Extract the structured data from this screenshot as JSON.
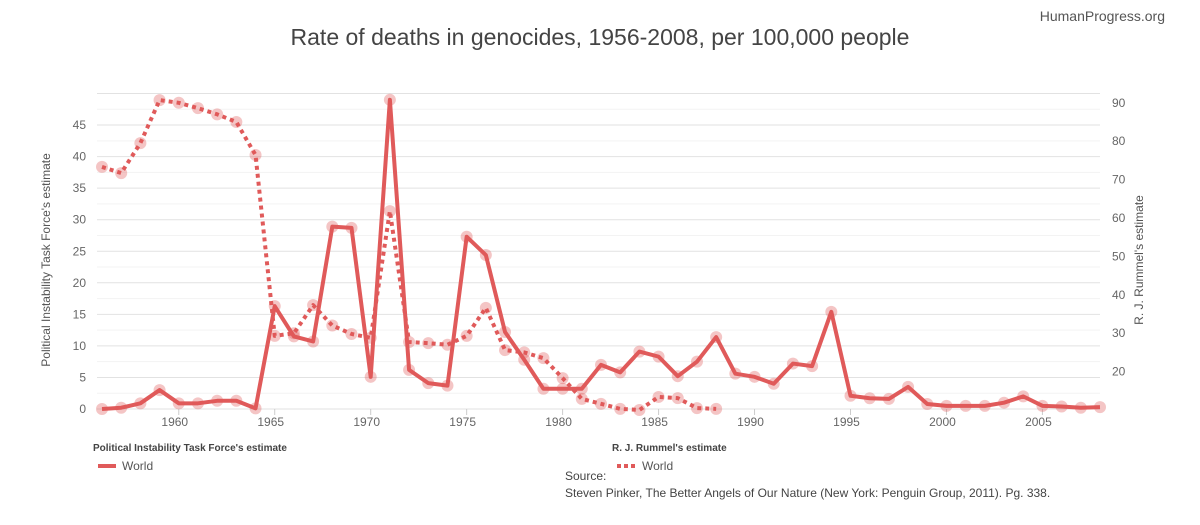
{
  "brand": "HumanProgress.org",
  "chart_data": {
    "type": "line",
    "title": "Rate of deaths in genocides, 1956-2008, per 100,000 people",
    "xlabel": "",
    "ylabel_left": "Political Instability Task Force's estimate",
    "ylabel_right": "R. J. Rummel's estimate",
    "x_ticks": [
      1960,
      1965,
      1970,
      1975,
      1980,
      1985,
      1990,
      1995,
      2000,
      2005
    ],
    "xlim": [
      1956,
      2008
    ],
    "y_left_ticks": [
      0,
      5,
      10,
      15,
      20,
      25,
      30,
      35,
      40,
      45
    ],
    "y_left_lim": [
      0,
      50
    ],
    "y_right_ticks": [
      20,
      30,
      40,
      50,
      60,
      70,
      80,
      90
    ],
    "y_right_lim": [
      10,
      94
    ],
    "grid": true,
    "legend_placement": "bottom",
    "series": [
      {
        "name": "World",
        "group": "Political Instability Task Force's estimate",
        "axis": "left",
        "style": "solid",
        "x": [
          1956,
          1957,
          1958,
          1959,
          1960,
          1961,
          1962,
          1963,
          1964,
          1965,
          1966,
          1967,
          1968,
          1969,
          1970,
          1971,
          1972,
          1973,
          1974,
          1975,
          1976,
          1977,
          1978,
          1979,
          1980,
          1981,
          1982,
          1983,
          1984,
          1985,
          1986,
          1987,
          1988,
          1989,
          1990,
          1991,
          1992,
          1993,
          1994,
          1995,
          1996,
          1997,
          1998,
          1999,
          2000,
          2001,
          2002,
          2003,
          2004,
          2005,
          2006,
          2007,
          2008
        ],
        "values": [
          0,
          0.2,
          0.9,
          3,
          0.9,
          0.9,
          1.3,
          1.3,
          0.1,
          16.3,
          11.5,
          10.7,
          28.9,
          28.7,
          5.1,
          49,
          6.2,
          4.1,
          3.7,
          27.3,
          24.4,
          12.2,
          7.8,
          3.2,
          3.2,
          3.2,
          7,
          5.8,
          9.1,
          8.3,
          5.2,
          7.5,
          11.4,
          5.6,
          5.1,
          4,
          7.2,
          6.8,
          15.4,
          2.1,
          1.7,
          1.6,
          3.5,
          0.8,
          0.5,
          0.5,
          0.5,
          1,
          2,
          0.5,
          0.4,
          0.2,
          0.3
        ]
      },
      {
        "name": "World",
        "group": "R. J. Rummel's estimate",
        "axis": "right",
        "style": "dotted",
        "x": [
          1956,
          1957,
          1958,
          1959,
          1960,
          1961,
          1962,
          1963,
          1964,
          1965,
          1966,
          1967,
          1968,
          1969,
          1970,
          1971,
          1972,
          1973,
          1974,
          1975,
          1976,
          1977,
          1978,
          1979,
          1980,
          1981,
          1982,
          1983,
          1984,
          1985,
          1986,
          1987,
          1988
        ],
        "values": [
          73.3,
          71.7,
          79.5,
          90.7,
          90,
          88.6,
          87,
          85,
          76.4,
          29.3,
          30,
          37.3,
          32,
          29.8,
          28.8,
          61.8,
          27.7,
          27.4,
          27,
          29.3,
          36.6,
          25.6,
          25,
          23.5,
          18.3,
          12.9,
          11.6,
          10.3,
          10,
          13.4,
          13.1,
          10.5,
          10.3
        ]
      }
    ],
    "color": "#e05a5a"
  },
  "source": {
    "label": "Source:",
    "text": "Steven Pinker, The Better Angels of Our Nature (New York: Penguin Group, 2011). Pg. 338."
  }
}
